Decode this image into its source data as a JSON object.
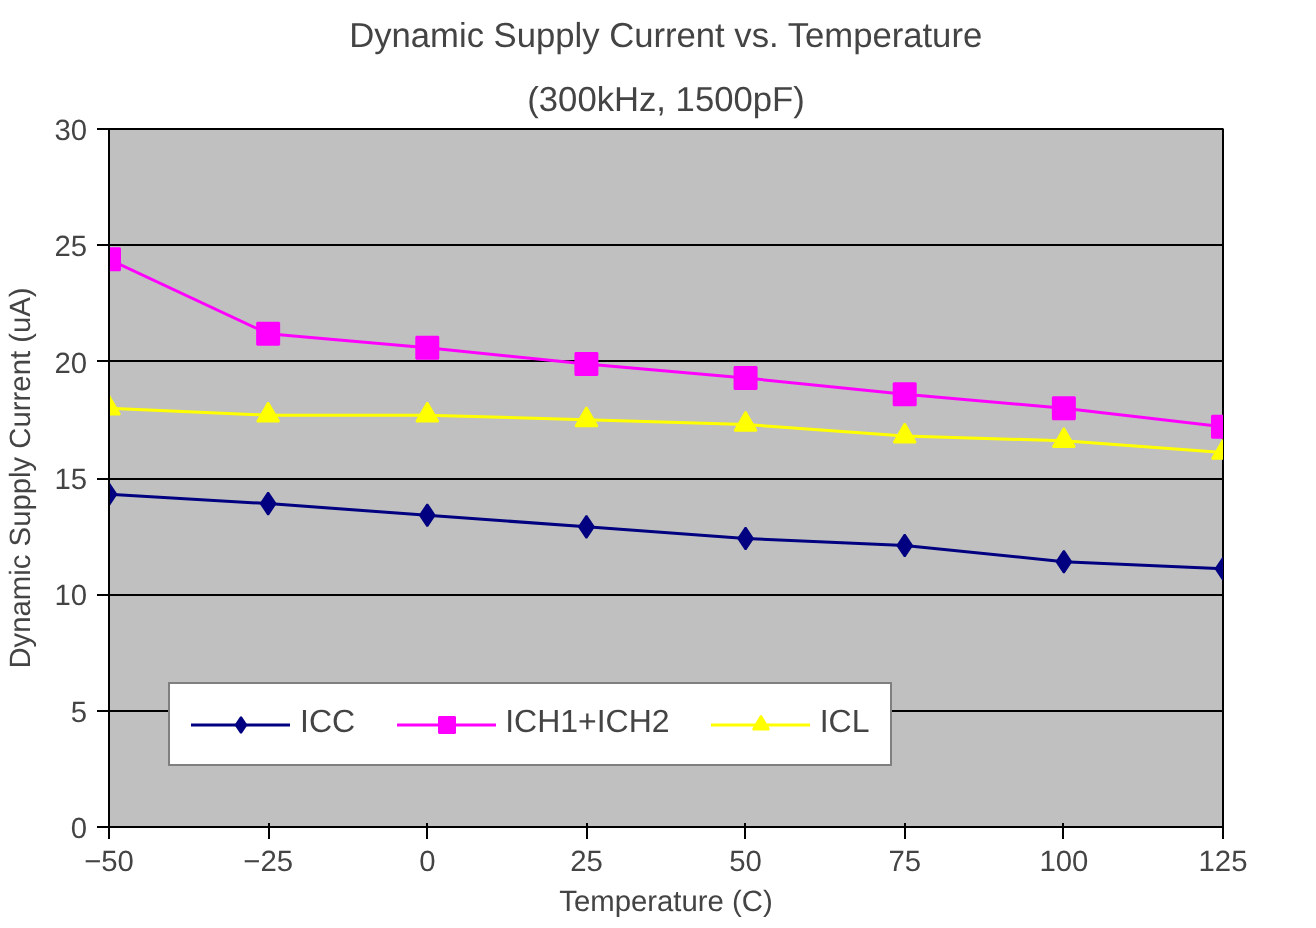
{
  "chart_data": {
    "type": "line",
    "title": "Dynamic Supply Current vs. Temperature",
    "subtitle": "(300kHz, 1500pF)",
    "xlabel": "Temperature (C)",
    "ylabel": "Dynamic Supply Current (uA)",
    "x": [
      -50,
      -25,
      0,
      25,
      50,
      75,
      100,
      125
    ],
    "series": [
      {
        "name": "ICC",
        "color": "#000080",
        "marker": "diamond",
        "values": [
          14.3,
          13.9,
          13.4,
          12.9,
          12.4,
          12.1,
          11.4,
          11.1
        ]
      },
      {
        "name": "ICH1+ICH2",
        "color": "#ff00ff",
        "marker": "square",
        "values": [
          24.4,
          21.2,
          20.6,
          19.9,
          19.3,
          18.6,
          18.0,
          17.2
        ]
      },
      {
        "name": "ICL",
        "color": "#ffff00",
        "marker": "triangle",
        "values": [
          18.0,
          17.7,
          17.7,
          17.5,
          17.3,
          16.8,
          16.6,
          16.1
        ]
      }
    ],
    "xlim": [
      -50,
      125
    ],
    "xticks": [
      -50,
      -25,
      0,
      25,
      50,
      75,
      100,
      125
    ],
    "ylim": [
      0,
      30
    ],
    "yticks": [
      0,
      5,
      10,
      15,
      20,
      25,
      30
    ],
    "grid": "y",
    "legend": "bottom left",
    "line_style": "solid"
  }
}
